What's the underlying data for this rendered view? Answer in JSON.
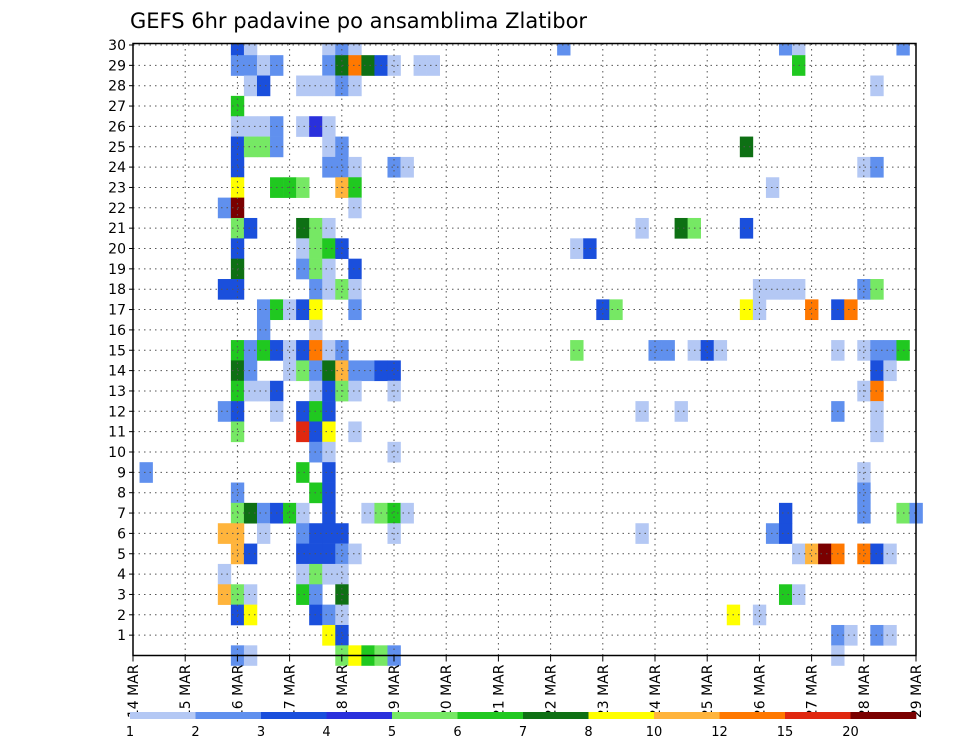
{
  "chart_data": {
    "type": "heatmap",
    "title": "GEFS 6hr padavine po ansamblima Zlatibor",
    "xlabel": "",
    "ylabel": "",
    "x_ticks": [
      "14 MAR",
      "15 MAR",
      "16 MAR",
      "17 MAR",
      "18 MAR",
      "19 MAR",
      "20 MAR",
      "21 MAR",
      "22 MAR",
      "23 MAR",
      "24 MAR",
      "25 MAR",
      "26 MAR",
      "27 MAR",
      "28 MAR",
      "29 MAR"
    ],
    "y_ticks": [
      1,
      2,
      3,
      4,
      5,
      6,
      7,
      8,
      9,
      10,
      11,
      12,
      13,
      14,
      15,
      16,
      17,
      18,
      19,
      20,
      21,
      22,
      23,
      24,
      25,
      26,
      27,
      28,
      29,
      30
    ],
    "xlim_days": [
      14,
      29
    ],
    "ylim": [
      0,
      30
    ],
    "grid": true,
    "colorbar": {
      "levels": [
        "1",
        "2",
        "3",
        "4",
        "5",
        "6",
        "7",
        "8",
        "10",
        "12",
        "15",
        "20"
      ],
      "colors": [
        "#b4c8f4",
        "#6090ee",
        "#1a4fdc",
        "#2a30dc",
        "#76e864",
        "#20c820",
        "#0e7014",
        "#ffff00",
        "#ffb43c",
        "#ff7800",
        "#e02810",
        "#7a0000"
      ]
    },
    "cells": [
      {
        "ens": 30,
        "t": 16.0,
        "c": 2
      },
      {
        "ens": 30,
        "t": 16.25,
        "c": 0
      },
      {
        "ens": 30,
        "t": 17.75,
        "c": 0
      },
      {
        "ens": 30,
        "t": 18.0,
        "c": 1
      },
      {
        "ens": 30,
        "t": 18.25,
        "c": 0
      },
      {
        "ens": 30,
        "t": 22.25,
        "c": 1
      },
      {
        "ens": 30,
        "t": 26.5,
        "c": 1
      },
      {
        "ens": 30,
        "t": 26.75,
        "c": 0
      },
      {
        "ens": 30,
        "t": 28.75,
        "c": 1
      },
      {
        "ens": 29,
        "t": 16.0,
        "c": 1
      },
      {
        "ens": 29,
        "t": 16.25,
        "c": 1
      },
      {
        "ens": 29,
        "t": 16.5,
        "c": 0
      },
      {
        "ens": 29,
        "t": 16.75,
        "c": 1
      },
      {
        "ens": 29,
        "t": 17.75,
        "c": 1
      },
      {
        "ens": 29,
        "t": 18.0,
        "c": 6
      },
      {
        "ens": 29,
        "t": 18.25,
        "c": 9
      },
      {
        "ens": 29,
        "t": 18.5,
        "c": 6
      },
      {
        "ens": 29,
        "t": 18.75,
        "c": 2
      },
      {
        "ens": 29,
        "t": 19.0,
        "c": 0
      },
      {
        "ens": 29,
        "t": 19.5,
        "c": 0
      },
      {
        "ens": 29,
        "t": 19.75,
        "c": 0
      },
      {
        "ens": 29,
        "t": 26.75,
        "c": 5
      },
      {
        "ens": 28,
        "t": 16.25,
        "c": 0
      },
      {
        "ens": 28,
        "t": 16.5,
        "c": 2
      },
      {
        "ens": 28,
        "t": 17.25,
        "c": 0
      },
      {
        "ens": 28,
        "t": 17.5,
        "c": 0
      },
      {
        "ens": 28,
        "t": 17.75,
        "c": 0
      },
      {
        "ens": 28,
        "t": 18.0,
        "c": 1
      },
      {
        "ens": 28,
        "t": 18.25,
        "c": 0
      },
      {
        "ens": 28,
        "t": 28.25,
        "c": 0
      },
      {
        "ens": 27,
        "t": 16.0,
        "c": 5
      },
      {
        "ens": 26,
        "t": 16.0,
        "c": 0
      },
      {
        "ens": 26,
        "t": 16.25,
        "c": 0
      },
      {
        "ens": 26,
        "t": 16.5,
        "c": 0
      },
      {
        "ens": 26,
        "t": 16.75,
        "c": 1
      },
      {
        "ens": 26,
        "t": 17.25,
        "c": 0
      },
      {
        "ens": 26,
        "t": 17.5,
        "c": 3
      },
      {
        "ens": 26,
        "t": 17.75,
        "c": 0
      },
      {
        "ens": 25,
        "t": 16.0,
        "c": 2
      },
      {
        "ens": 25,
        "t": 16.25,
        "c": 4
      },
      {
        "ens": 25,
        "t": 16.5,
        "c": 4
      },
      {
        "ens": 25,
        "t": 16.75,
        "c": 1
      },
      {
        "ens": 25,
        "t": 17.75,
        "c": 0
      },
      {
        "ens": 25,
        "t": 18.0,
        "c": 1
      },
      {
        "ens": 25,
        "t": 25.75,
        "c": 6
      },
      {
        "ens": 24,
        "t": 16.0,
        "c": 2
      },
      {
        "ens": 24,
        "t": 17.75,
        "c": 1
      },
      {
        "ens": 24,
        "t": 18.0,
        "c": 1
      },
      {
        "ens": 24,
        "t": 18.25,
        "c": 0
      },
      {
        "ens": 24,
        "t": 19.0,
        "c": 1
      },
      {
        "ens": 24,
        "t": 19.25,
        "c": 0
      },
      {
        "ens": 24,
        "t": 28.0,
        "c": 0
      },
      {
        "ens": 24,
        "t": 28.25,
        "c": 1
      },
      {
        "ens": 23,
        "t": 16.0,
        "c": 7
      },
      {
        "ens": 23,
        "t": 16.75,
        "c": 5
      },
      {
        "ens": 23,
        "t": 17.0,
        "c": 5
      },
      {
        "ens": 23,
        "t": 17.25,
        "c": 4
      },
      {
        "ens": 23,
        "t": 18.0,
        "c": 8
      },
      {
        "ens": 23,
        "t": 18.25,
        "c": 5
      },
      {
        "ens": 23,
        "t": 26.25,
        "c": 0
      },
      {
        "ens": 22,
        "t": 15.75,
        "c": 1
      },
      {
        "ens": 22,
        "t": 16.0,
        "c": 11
      },
      {
        "ens": 22,
        "t": 18.25,
        "c": 0
      },
      {
        "ens": 21,
        "t": 16.0,
        "c": 4
      },
      {
        "ens": 21,
        "t": 16.25,
        "c": 2
      },
      {
        "ens": 21,
        "t": 17.25,
        "c": 6
      },
      {
        "ens": 21,
        "t": 17.5,
        "c": 4
      },
      {
        "ens": 21,
        "t": 17.75,
        "c": 0
      },
      {
        "ens": 21,
        "t": 23.75,
        "c": 0
      },
      {
        "ens": 21,
        "t": 24.5,
        "c": 6
      },
      {
        "ens": 21,
        "t": 24.75,
        "c": 4
      },
      {
        "ens": 21,
        "t": 25.75,
        "c": 2
      },
      {
        "ens": 20,
        "t": 16.0,
        "c": 2
      },
      {
        "ens": 20,
        "t": 17.25,
        "c": 0
      },
      {
        "ens": 20,
        "t": 17.5,
        "c": 4
      },
      {
        "ens": 20,
        "t": 17.75,
        "c": 5
      },
      {
        "ens": 20,
        "t": 18.0,
        "c": 2
      },
      {
        "ens": 20,
        "t": 22.5,
        "c": 0
      },
      {
        "ens": 20,
        "t": 22.75,
        "c": 2
      },
      {
        "ens": 19,
        "t": 16.0,
        "c": 6
      },
      {
        "ens": 19,
        "t": 17.25,
        "c": 1
      },
      {
        "ens": 19,
        "t": 17.5,
        "c": 4
      },
      {
        "ens": 19,
        "t": 17.75,
        "c": 0
      },
      {
        "ens": 19,
        "t": 18.25,
        "c": 2
      },
      {
        "ens": 18,
        "t": 15.75,
        "c": 2
      },
      {
        "ens": 18,
        "t": 16.0,
        "c": 2
      },
      {
        "ens": 18,
        "t": 17.5,
        "c": 1
      },
      {
        "ens": 18,
        "t": 17.75,
        "c": 0
      },
      {
        "ens": 18,
        "t": 18.0,
        "c": 4
      },
      {
        "ens": 18,
        "t": 18.25,
        "c": 0
      },
      {
        "ens": 18,
        "t": 26.0,
        "c": 0
      },
      {
        "ens": 18,
        "t": 26.25,
        "c": 0
      },
      {
        "ens": 18,
        "t": 26.5,
        "c": 0
      },
      {
        "ens": 18,
        "t": 26.75,
        "c": 0
      },
      {
        "ens": 18,
        "t": 28.0,
        "c": 1
      },
      {
        "ens": 18,
        "t": 28.25,
        "c": 4
      },
      {
        "ens": 17,
        "t": 16.5,
        "c": 1
      },
      {
        "ens": 17,
        "t": 16.75,
        "c": 5
      },
      {
        "ens": 17,
        "t": 17.0,
        "c": 0
      },
      {
        "ens": 17,
        "t": 17.25,
        "c": 2
      },
      {
        "ens": 17,
        "t": 17.5,
        "c": 7
      },
      {
        "ens": 17,
        "t": 18.25,
        "c": 1
      },
      {
        "ens": 17,
        "t": 23.0,
        "c": 2
      },
      {
        "ens": 17,
        "t": 23.25,
        "c": 4
      },
      {
        "ens": 17,
        "t": 25.75,
        "c": 7
      },
      {
        "ens": 17,
        "t": 26.0,
        "c": 0
      },
      {
        "ens": 17,
        "t": 27.0,
        "c": 9
      },
      {
        "ens": 17,
        "t": 27.5,
        "c": 2
      },
      {
        "ens": 17,
        "t": 27.75,
        "c": 9
      },
      {
        "ens": 16,
        "t": 16.5,
        "c": 1
      },
      {
        "ens": 16,
        "t": 17.5,
        "c": 0
      },
      {
        "ens": 15,
        "t": 16.0,
        "c": 5
      },
      {
        "ens": 15,
        "t": 16.25,
        "c": 1
      },
      {
        "ens": 15,
        "t": 16.5,
        "c": 5
      },
      {
        "ens": 15,
        "t": 16.75,
        "c": 2
      },
      {
        "ens": 15,
        "t": 17.0,
        "c": 0
      },
      {
        "ens": 15,
        "t": 17.25,
        "c": 2
      },
      {
        "ens": 15,
        "t": 17.5,
        "c": 9
      },
      {
        "ens": 15,
        "t": 17.75,
        "c": 0
      },
      {
        "ens": 15,
        "t": 18.0,
        "c": 1
      },
      {
        "ens": 15,
        "t": 22.5,
        "c": 4
      },
      {
        "ens": 15,
        "t": 24.0,
        "c": 1
      },
      {
        "ens": 15,
        "t": 24.25,
        "c": 1
      },
      {
        "ens": 15,
        "t": 24.75,
        "c": 0
      },
      {
        "ens": 15,
        "t": 25.0,
        "c": 2
      },
      {
        "ens": 15,
        "t": 25.25,
        "c": 0
      },
      {
        "ens": 15,
        "t": 27.5,
        "c": 0
      },
      {
        "ens": 15,
        "t": 28.0,
        "c": 0
      },
      {
        "ens": 15,
        "t": 28.25,
        "c": 1
      },
      {
        "ens": 15,
        "t": 28.5,
        "c": 1
      },
      {
        "ens": 15,
        "t": 28.75,
        "c": 5
      },
      {
        "ens": 14,
        "t": 16.0,
        "c": 6
      },
      {
        "ens": 14,
        "t": 16.25,
        "c": 1
      },
      {
        "ens": 14,
        "t": 17.0,
        "c": 0
      },
      {
        "ens": 14,
        "t": 17.25,
        "c": 4
      },
      {
        "ens": 14,
        "t": 17.5,
        "c": 1
      },
      {
        "ens": 14,
        "t": 17.75,
        "c": 6
      },
      {
        "ens": 14,
        "t": 18.0,
        "c": 8
      },
      {
        "ens": 14,
        "t": 18.25,
        "c": 1
      },
      {
        "ens": 14,
        "t": 18.5,
        "c": 1
      },
      {
        "ens": 14,
        "t": 18.75,
        "c": 2
      },
      {
        "ens": 14,
        "t": 19.0,
        "c": 2
      },
      {
        "ens": 14,
        "t": 28.25,
        "c": 2
      },
      {
        "ens": 14,
        "t": 28.5,
        "c": 0
      },
      {
        "ens": 13,
        "t": 16.0,
        "c": 5
      },
      {
        "ens": 13,
        "t": 16.25,
        "c": 0
      },
      {
        "ens": 13,
        "t": 16.5,
        "c": 0
      },
      {
        "ens": 13,
        "t": 16.75,
        "c": 2
      },
      {
        "ens": 13,
        "t": 17.5,
        "c": 0
      },
      {
        "ens": 13,
        "t": 17.75,
        "c": 2
      },
      {
        "ens": 13,
        "t": 18.0,
        "c": 4
      },
      {
        "ens": 13,
        "t": 18.25,
        "c": 0
      },
      {
        "ens": 13,
        "t": 19.0,
        "c": 0
      },
      {
        "ens": 13,
        "t": 28.0,
        "c": 0
      },
      {
        "ens": 13,
        "t": 28.25,
        "c": 9
      },
      {
        "ens": 12,
        "t": 15.75,
        "c": 1
      },
      {
        "ens": 12,
        "t": 16.0,
        "c": 2
      },
      {
        "ens": 12,
        "t": 16.75,
        "c": 0
      },
      {
        "ens": 12,
        "t": 17.25,
        "c": 2
      },
      {
        "ens": 12,
        "t": 17.5,
        "c": 5
      },
      {
        "ens": 12,
        "t": 17.75,
        "c": 2
      },
      {
        "ens": 12,
        "t": 23.75,
        "c": 0
      },
      {
        "ens": 12,
        "t": 24.5,
        "c": 0
      },
      {
        "ens": 12,
        "t": 27.5,
        "c": 1
      },
      {
        "ens": 12,
        "t": 28.25,
        "c": 0
      },
      {
        "ens": 11,
        "t": 16.0,
        "c": 4
      },
      {
        "ens": 11,
        "t": 17.25,
        "c": 10
      },
      {
        "ens": 11,
        "t": 17.5,
        "c": 2
      },
      {
        "ens": 11,
        "t": 17.75,
        "c": 7
      },
      {
        "ens": 11,
        "t": 18.25,
        "c": 0
      },
      {
        "ens": 11,
        "t": 28.25,
        "c": 0
      },
      {
        "ens": 10,
        "t": 17.5,
        "c": 1
      },
      {
        "ens": 10,
        "t": 17.75,
        "c": 0
      },
      {
        "ens": 10,
        "t": 19.0,
        "c": 0
      },
      {
        "ens": 9,
        "t": 14.25,
        "c": 1
      },
      {
        "ens": 9,
        "t": 17.25,
        "c": 5
      },
      {
        "ens": 9,
        "t": 17.75,
        "c": 2
      },
      {
        "ens": 9,
        "t": 28.0,
        "c": 0
      },
      {
        "ens": 8,
        "t": 16.0,
        "c": 1
      },
      {
        "ens": 8,
        "t": 17.5,
        "c": 5
      },
      {
        "ens": 8,
        "t": 17.75,
        "c": 2
      },
      {
        "ens": 8,
        "t": 28.0,
        "c": 1
      },
      {
        "ens": 7,
        "t": 16.0,
        "c": 4
      },
      {
        "ens": 7,
        "t": 16.25,
        "c": 6
      },
      {
        "ens": 7,
        "t": 16.5,
        "c": 1
      },
      {
        "ens": 7,
        "t": 16.75,
        "c": 2
      },
      {
        "ens": 7,
        "t": 17.0,
        "c": 5
      },
      {
        "ens": 7,
        "t": 17.25,
        "c": 0
      },
      {
        "ens": 7,
        "t": 17.75,
        "c": 2
      },
      {
        "ens": 7,
        "t": 18.5,
        "c": 0
      },
      {
        "ens": 7,
        "t": 18.75,
        "c": 4
      },
      {
        "ens": 7,
        "t": 19.0,
        "c": 5
      },
      {
        "ens": 7,
        "t": 19.25,
        "c": 0
      },
      {
        "ens": 7,
        "t": 26.5,
        "c": 2
      },
      {
        "ens": 7,
        "t": 28.0,
        "c": 1
      },
      {
        "ens": 7,
        "t": 28.75,
        "c": 4
      },
      {
        "ens": 7,
        "t": 29.0,
        "c": 1
      },
      {
        "ens": 6,
        "t": 15.75,
        "c": 8
      },
      {
        "ens": 6,
        "t": 16.0,
        "c": 8
      },
      {
        "ens": 6,
        "t": 16.5,
        "c": 0
      },
      {
        "ens": 6,
        "t": 17.25,
        "c": 1
      },
      {
        "ens": 6,
        "t": 17.5,
        "c": 2
      },
      {
        "ens": 6,
        "t": 17.75,
        "c": 2
      },
      {
        "ens": 6,
        "t": 18.0,
        "c": 2
      },
      {
        "ens": 6,
        "t": 19.0,
        "c": 0
      },
      {
        "ens": 6,
        "t": 23.75,
        "c": 0
      },
      {
        "ens": 6,
        "t": 26.25,
        "c": 1
      },
      {
        "ens": 6,
        "t": 26.5,
        "c": 2
      },
      {
        "ens": 5,
        "t": 16.0,
        "c": 8
      },
      {
        "ens": 5,
        "t": 16.25,
        "c": 2
      },
      {
        "ens": 5,
        "t": 17.25,
        "c": 2
      },
      {
        "ens": 5,
        "t": 17.5,
        "c": 2
      },
      {
        "ens": 5,
        "t": 17.75,
        "c": 2
      },
      {
        "ens": 5,
        "t": 18.0,
        "c": 1
      },
      {
        "ens": 5,
        "t": 18.25,
        "c": 0
      },
      {
        "ens": 5,
        "t": 26.75,
        "c": 0
      },
      {
        "ens": 5,
        "t": 27.0,
        "c": 8
      },
      {
        "ens": 5,
        "t": 27.25,
        "c": 11
      },
      {
        "ens": 5,
        "t": 27.5,
        "c": 9
      },
      {
        "ens": 5,
        "t": 28.0,
        "c": 9
      },
      {
        "ens": 5,
        "t": 28.25,
        "c": 2
      },
      {
        "ens": 5,
        "t": 28.5,
        "c": 0
      },
      {
        "ens": 4,
        "t": 15.75,
        "c": 0
      },
      {
        "ens": 4,
        "t": 17.25,
        "c": 0
      },
      {
        "ens": 4,
        "t": 17.5,
        "c": 4
      },
      {
        "ens": 4,
        "t": 17.75,
        "c": 0
      },
      {
        "ens": 4,
        "t": 18.0,
        "c": 0
      },
      {
        "ens": 3,
        "t": 15.75,
        "c": 8
      },
      {
        "ens": 3,
        "t": 16.0,
        "c": 4
      },
      {
        "ens": 3,
        "t": 16.25,
        "c": 0
      },
      {
        "ens": 3,
        "t": 17.25,
        "c": 5
      },
      {
        "ens": 3,
        "t": 17.5,
        "c": 1
      },
      {
        "ens": 3,
        "t": 18.0,
        "c": 6
      },
      {
        "ens": 3,
        "t": 26.5,
        "c": 5
      },
      {
        "ens": 3,
        "t": 26.75,
        "c": 0
      },
      {
        "ens": 2,
        "t": 16.0,
        "c": 2
      },
      {
        "ens": 2,
        "t": 16.25,
        "c": 7
      },
      {
        "ens": 2,
        "t": 17.5,
        "c": 2
      },
      {
        "ens": 2,
        "t": 17.75,
        "c": 1
      },
      {
        "ens": 2,
        "t": 18.0,
        "c": 0
      },
      {
        "ens": 2,
        "t": 25.5,
        "c": 7
      },
      {
        "ens": 2,
        "t": 26.0,
        "c": 0
      },
      {
        "ens": 1,
        "t": 17.75,
        "c": 7
      },
      {
        "ens": 1,
        "t": 18.0,
        "c": 2
      },
      {
        "ens": 1,
        "t": 27.5,
        "c": 1
      },
      {
        "ens": 1,
        "t": 27.75,
        "c": 0
      },
      {
        "ens": 1,
        "t": 28.25,
        "c": 1
      },
      {
        "ens": 1,
        "t": 28.5,
        "c": 0
      },
      {
        "ens": 0,
        "t": 16.0,
        "c": 1
      },
      {
        "ens": 0,
        "t": 16.25,
        "c": 0
      },
      {
        "ens": 0,
        "t": 18.0,
        "c": 4
      },
      {
        "ens": 0,
        "t": 18.25,
        "c": 7
      },
      {
        "ens": 0,
        "t": 18.5,
        "c": 5
      },
      {
        "ens": 0,
        "t": 18.75,
        "c": 4
      },
      {
        "ens": 0,
        "t": 19.0,
        "c": 1
      },
      {
        "ens": 0,
        "t": 27.5,
        "c": 0
      }
    ]
  }
}
